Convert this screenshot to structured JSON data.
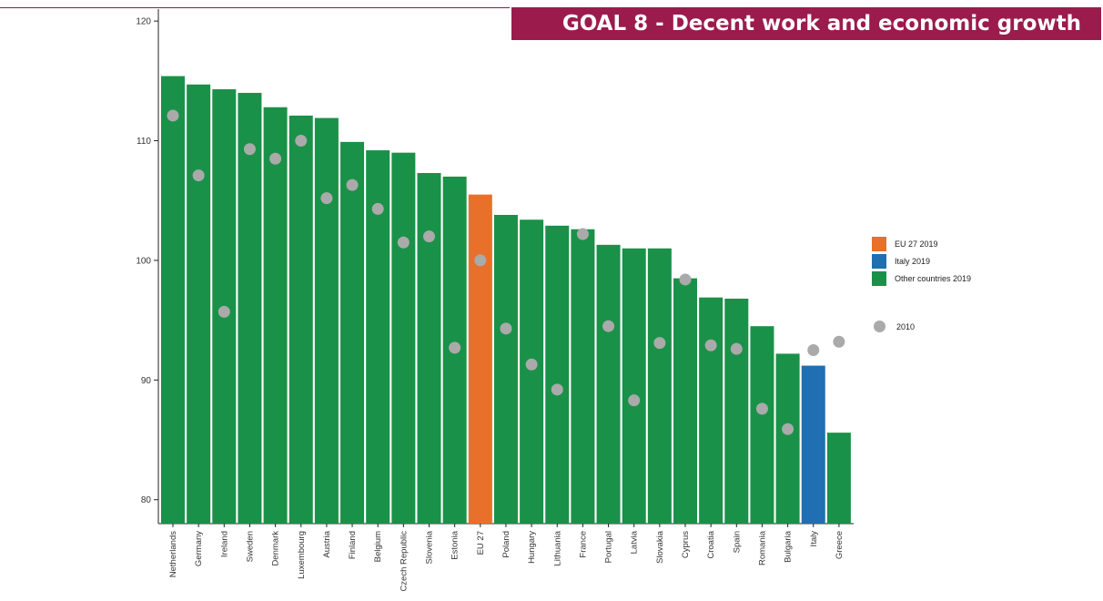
{
  "banner": {
    "title": "GOAL 8 - Decent work and economic growth"
  },
  "legend": {
    "items": [
      {
        "label": "EU 27 2019",
        "color": "#e8702a"
      },
      {
        "label": "Italy 2019",
        "color": "#1f6fb2"
      },
      {
        "label": "Other countries 2019",
        "color": "#1a9148"
      }
    ],
    "dot_item": {
      "label": "2010",
      "color": "#aaaaaa"
    }
  },
  "chart_data": {
    "type": "bar",
    "title": "",
    "xlabel": "",
    "ylabel": "",
    "ylim": [
      78,
      121
    ],
    "yticks": [
      80,
      90,
      100,
      110,
      120
    ],
    "grid": false,
    "legend_position": "right",
    "categories": [
      "Netherlands",
      "Germany",
      "Ireland",
      "Sweden",
      "Denmark",
      "Luxembourg",
      "Austria",
      "Finland",
      "Belgium",
      "Czech Republic",
      "Slovenia",
      "Estonia",
      "EU 27",
      "Poland",
      "Hungary",
      "Lithuania",
      "France",
      "Portugal",
      "Latvia",
      "Slovakia",
      "Cyprus",
      "Croatia",
      "Spain",
      "Romania",
      "Bulgaria",
      "Italy",
      "Greece"
    ],
    "series": [
      {
        "name": "2019",
        "type": "bar",
        "values": [
          115.4,
          114.7,
          114.3,
          114.0,
          112.8,
          112.1,
          111.9,
          109.9,
          109.2,
          109.0,
          107.3,
          107.0,
          105.5,
          103.8,
          103.4,
          102.9,
          102.6,
          101.3,
          101.0,
          101.0,
          98.5,
          96.9,
          96.8,
          94.5,
          92.2,
          91.2,
          85.6
        ],
        "groups": [
          "other",
          "other",
          "other",
          "other",
          "other",
          "other",
          "other",
          "other",
          "other",
          "other",
          "other",
          "other",
          "eu",
          "other",
          "other",
          "other",
          "other",
          "other",
          "other",
          "other",
          "other",
          "other",
          "other",
          "other",
          "other",
          "italy",
          "other"
        ]
      },
      {
        "name": "2010",
        "type": "scatter",
        "values": [
          112.1,
          107.1,
          95.7,
          109.3,
          108.5,
          110.0,
          105.2,
          106.3,
          104.3,
          101.5,
          102.0,
          92.7,
          100.0,
          94.3,
          91.3,
          89.2,
          102.2,
          94.5,
          88.3,
          93.1,
          98.4,
          92.9,
          92.6,
          87.6,
          85.9,
          92.5,
          93.2
        ]
      }
    ],
    "colors": {
      "eu": "#e8702a",
      "italy": "#1f6fb2",
      "other": "#1a9148",
      "dot": "#aaaaaa"
    }
  }
}
